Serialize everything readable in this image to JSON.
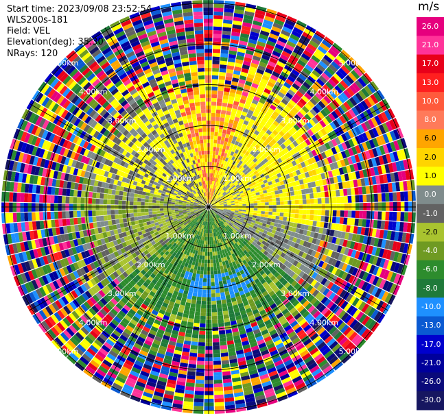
{
  "header": {
    "start_time": "Start time: 2023/09/08 23:52:54",
    "device": "WLS200s-181",
    "field": "Field: VEL",
    "elevation": "Elevation(deg): 35.30",
    "nrays": "NRays: 120"
  },
  "chart_data": {
    "type": "heatmap",
    "subtype": "radar-ppi-polar",
    "range_ring_labels": [
      "1.00km",
      "2.00km",
      "3.00km",
      "4.00km",
      "5.00km"
    ],
    "azimuth_lines_deg": [
      0,
      30,
      60,
      90,
      120,
      150,
      180,
      210,
      240,
      270,
      300,
      330
    ],
    "nrays": 120,
    "colorbar": {
      "unit": "m/s",
      "ticks": [
        "26.0",
        "21.0",
        "17.0",
        "13.0",
        "10.0",
        "8.0",
        "6.0",
        "2.0",
        "1.0",
        "0.0",
        "-1.0",
        "-2.0",
        "-4.0",
        "-6.0",
        "-8.0",
        "-10.0",
        "-13.0",
        "-17.0",
        "-21.0",
        "-26.0",
        "-30.0"
      ],
      "colors": [
        "#e6007e",
        "#ff3399",
        "#e8001a",
        "#ff1f1f",
        "#ff5a3c",
        "#ff7a5a",
        "#ffa500",
        "#ffd400",
        "#ffff00",
        "#7f8c8c",
        "#626262",
        "#a9c32f",
        "#6f9a22",
        "#2d8c2d",
        "#1f7a3a",
        "#1e90ff",
        "#0a5ad2",
        "#0000cd",
        "#00009b",
        "#0a0a7a",
        "#161660"
      ]
    }
  }
}
